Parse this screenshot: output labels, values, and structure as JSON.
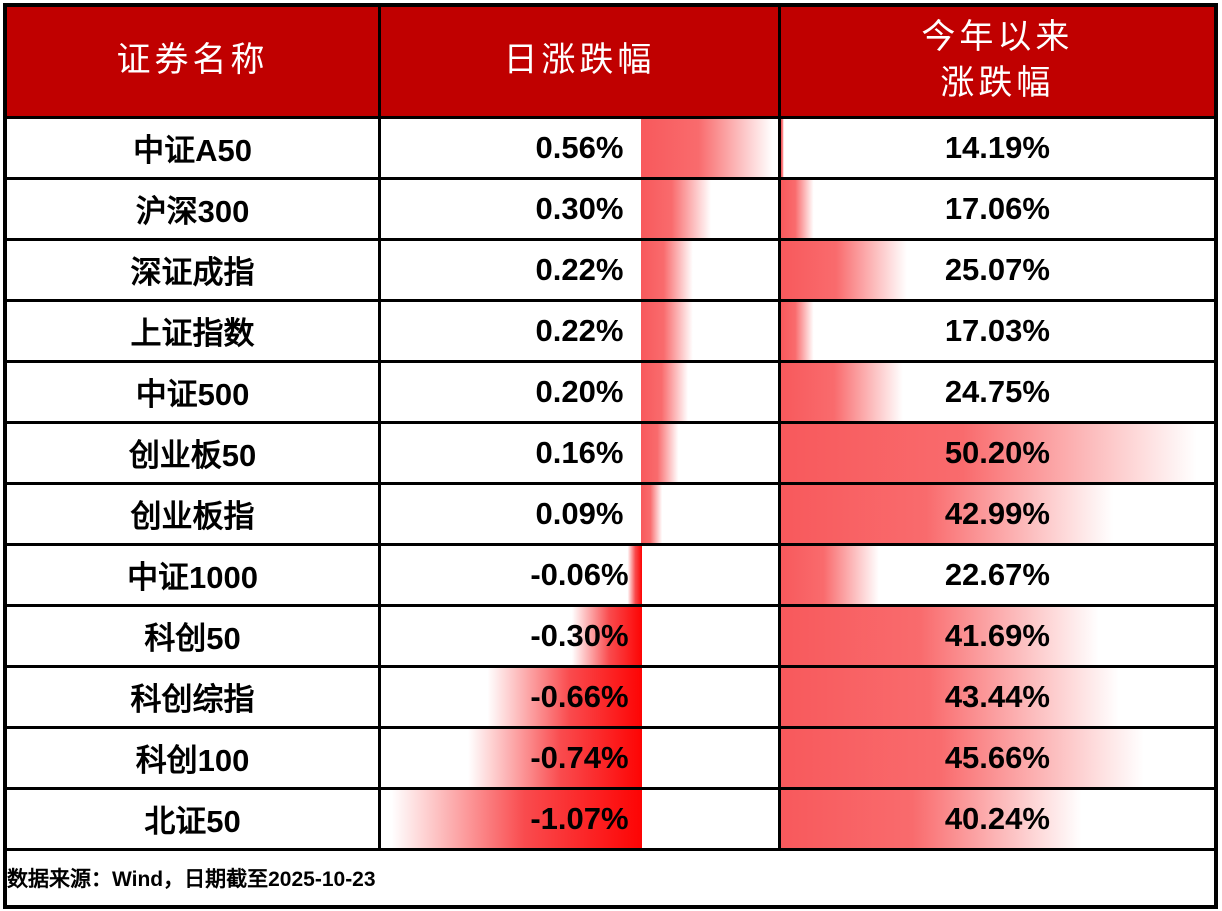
{
  "chart_data": {
    "type": "table",
    "title": "",
    "columns": [
      "证券名称",
      "日涨跌幅",
      "今年以来涨跌幅"
    ],
    "rows": [
      {
        "name": "中证A50",
        "daily_pct": 0.56,
        "ytd_pct": 14.19
      },
      {
        "name": "沪深300",
        "daily_pct": 0.3,
        "ytd_pct": 17.06
      },
      {
        "name": "深证成指",
        "daily_pct": 0.22,
        "ytd_pct": 25.07
      },
      {
        "name": "上证指数",
        "daily_pct": 0.22,
        "ytd_pct": 17.03
      },
      {
        "name": "中证500",
        "daily_pct": 0.2,
        "ytd_pct": 24.75
      },
      {
        "name": "创业板50",
        "daily_pct": 0.16,
        "ytd_pct": 50.2
      },
      {
        "name": "创业板指",
        "daily_pct": 0.09,
        "ytd_pct": 42.99
      },
      {
        "name": "中证1000",
        "daily_pct": -0.06,
        "ytd_pct": 22.67
      },
      {
        "name": "科创50",
        "daily_pct": -0.3,
        "ytd_pct": 41.69
      },
      {
        "name": "科创综指",
        "daily_pct": -0.66,
        "ytd_pct": 43.44
      },
      {
        "name": "科创100",
        "daily_pct": -0.74,
        "ytd_pct": 45.66
      },
      {
        "name": "北证50",
        "daily_pct": -1.07,
        "ytd_pct": 40.24
      }
    ],
    "bar_scales": {
      "daily": {
        "min": -1.07,
        "max": 0.56
      },
      "ytd": {
        "min": 14.19,
        "max": 50.2
      }
    },
    "layout_hints": {
      "databar_style": "gradient-red",
      "negative_bar_color": "#ff0000",
      "positive_bar_color": "#f8696b"
    }
  },
  "header": {
    "col1": "证券名称",
    "col2": "日涨跌幅",
    "col3_line1": "今年以来",
    "col3_line2": "涨跌幅"
  },
  "rows": [
    {
      "name": "中证A50",
      "daily": "0.56%",
      "daily_value": 0.56,
      "ytd": "14.19%",
      "ytd_value": 14.19
    },
    {
      "name": "沪深300",
      "daily": "0.30%",
      "daily_value": 0.3,
      "ytd": "17.06%",
      "ytd_value": 17.06
    },
    {
      "name": "深证成指",
      "daily": "0.22%",
      "daily_value": 0.22,
      "ytd": "25.07%",
      "ytd_value": 25.07
    },
    {
      "name": "上证指数",
      "daily": "0.22%",
      "daily_value": 0.22,
      "ytd": "17.03%",
      "ytd_value": 17.03
    },
    {
      "name": "中证500",
      "daily": "0.20%",
      "daily_value": 0.2,
      "ytd": "24.75%",
      "ytd_value": 24.75
    },
    {
      "name": "创业板50",
      "daily": "0.16%",
      "daily_value": 0.16,
      "ytd": "50.20%",
      "ytd_value": 50.2
    },
    {
      "name": "创业板指",
      "daily": "0.09%",
      "daily_value": 0.09,
      "ytd": "42.99%",
      "ytd_value": 42.99
    },
    {
      "name": "中证1000",
      "daily": "-0.06%",
      "daily_value": -0.06,
      "ytd": "22.67%",
      "ytd_value": 22.67
    },
    {
      "name": "科创50",
      "daily": "-0.30%",
      "daily_value": -0.3,
      "ytd": "41.69%",
      "ytd_value": 41.69
    },
    {
      "name": "科创综指",
      "daily": "-0.66%",
      "daily_value": -0.66,
      "ytd": "43.44%",
      "ytd_value": 43.44
    },
    {
      "name": "科创100",
      "daily": "-0.74%",
      "daily_value": -0.74,
      "ytd": "45.66%",
      "ytd_value": 45.66
    },
    {
      "name": "北证50",
      "daily": "-1.07%",
      "daily_value": -1.07,
      "ytd": "40.24%",
      "ytd_value": 40.24
    }
  ],
  "footer": {
    "text": "数据来源：Wind，日期截至2025-10-23"
  },
  "colors": {
    "header_bg": "#c00000",
    "header_text": "#ffffff",
    "border": "#000000",
    "positive_bar": "#f8696b",
    "negative_bar": "#ff0000",
    "body_text": "#000000"
  }
}
